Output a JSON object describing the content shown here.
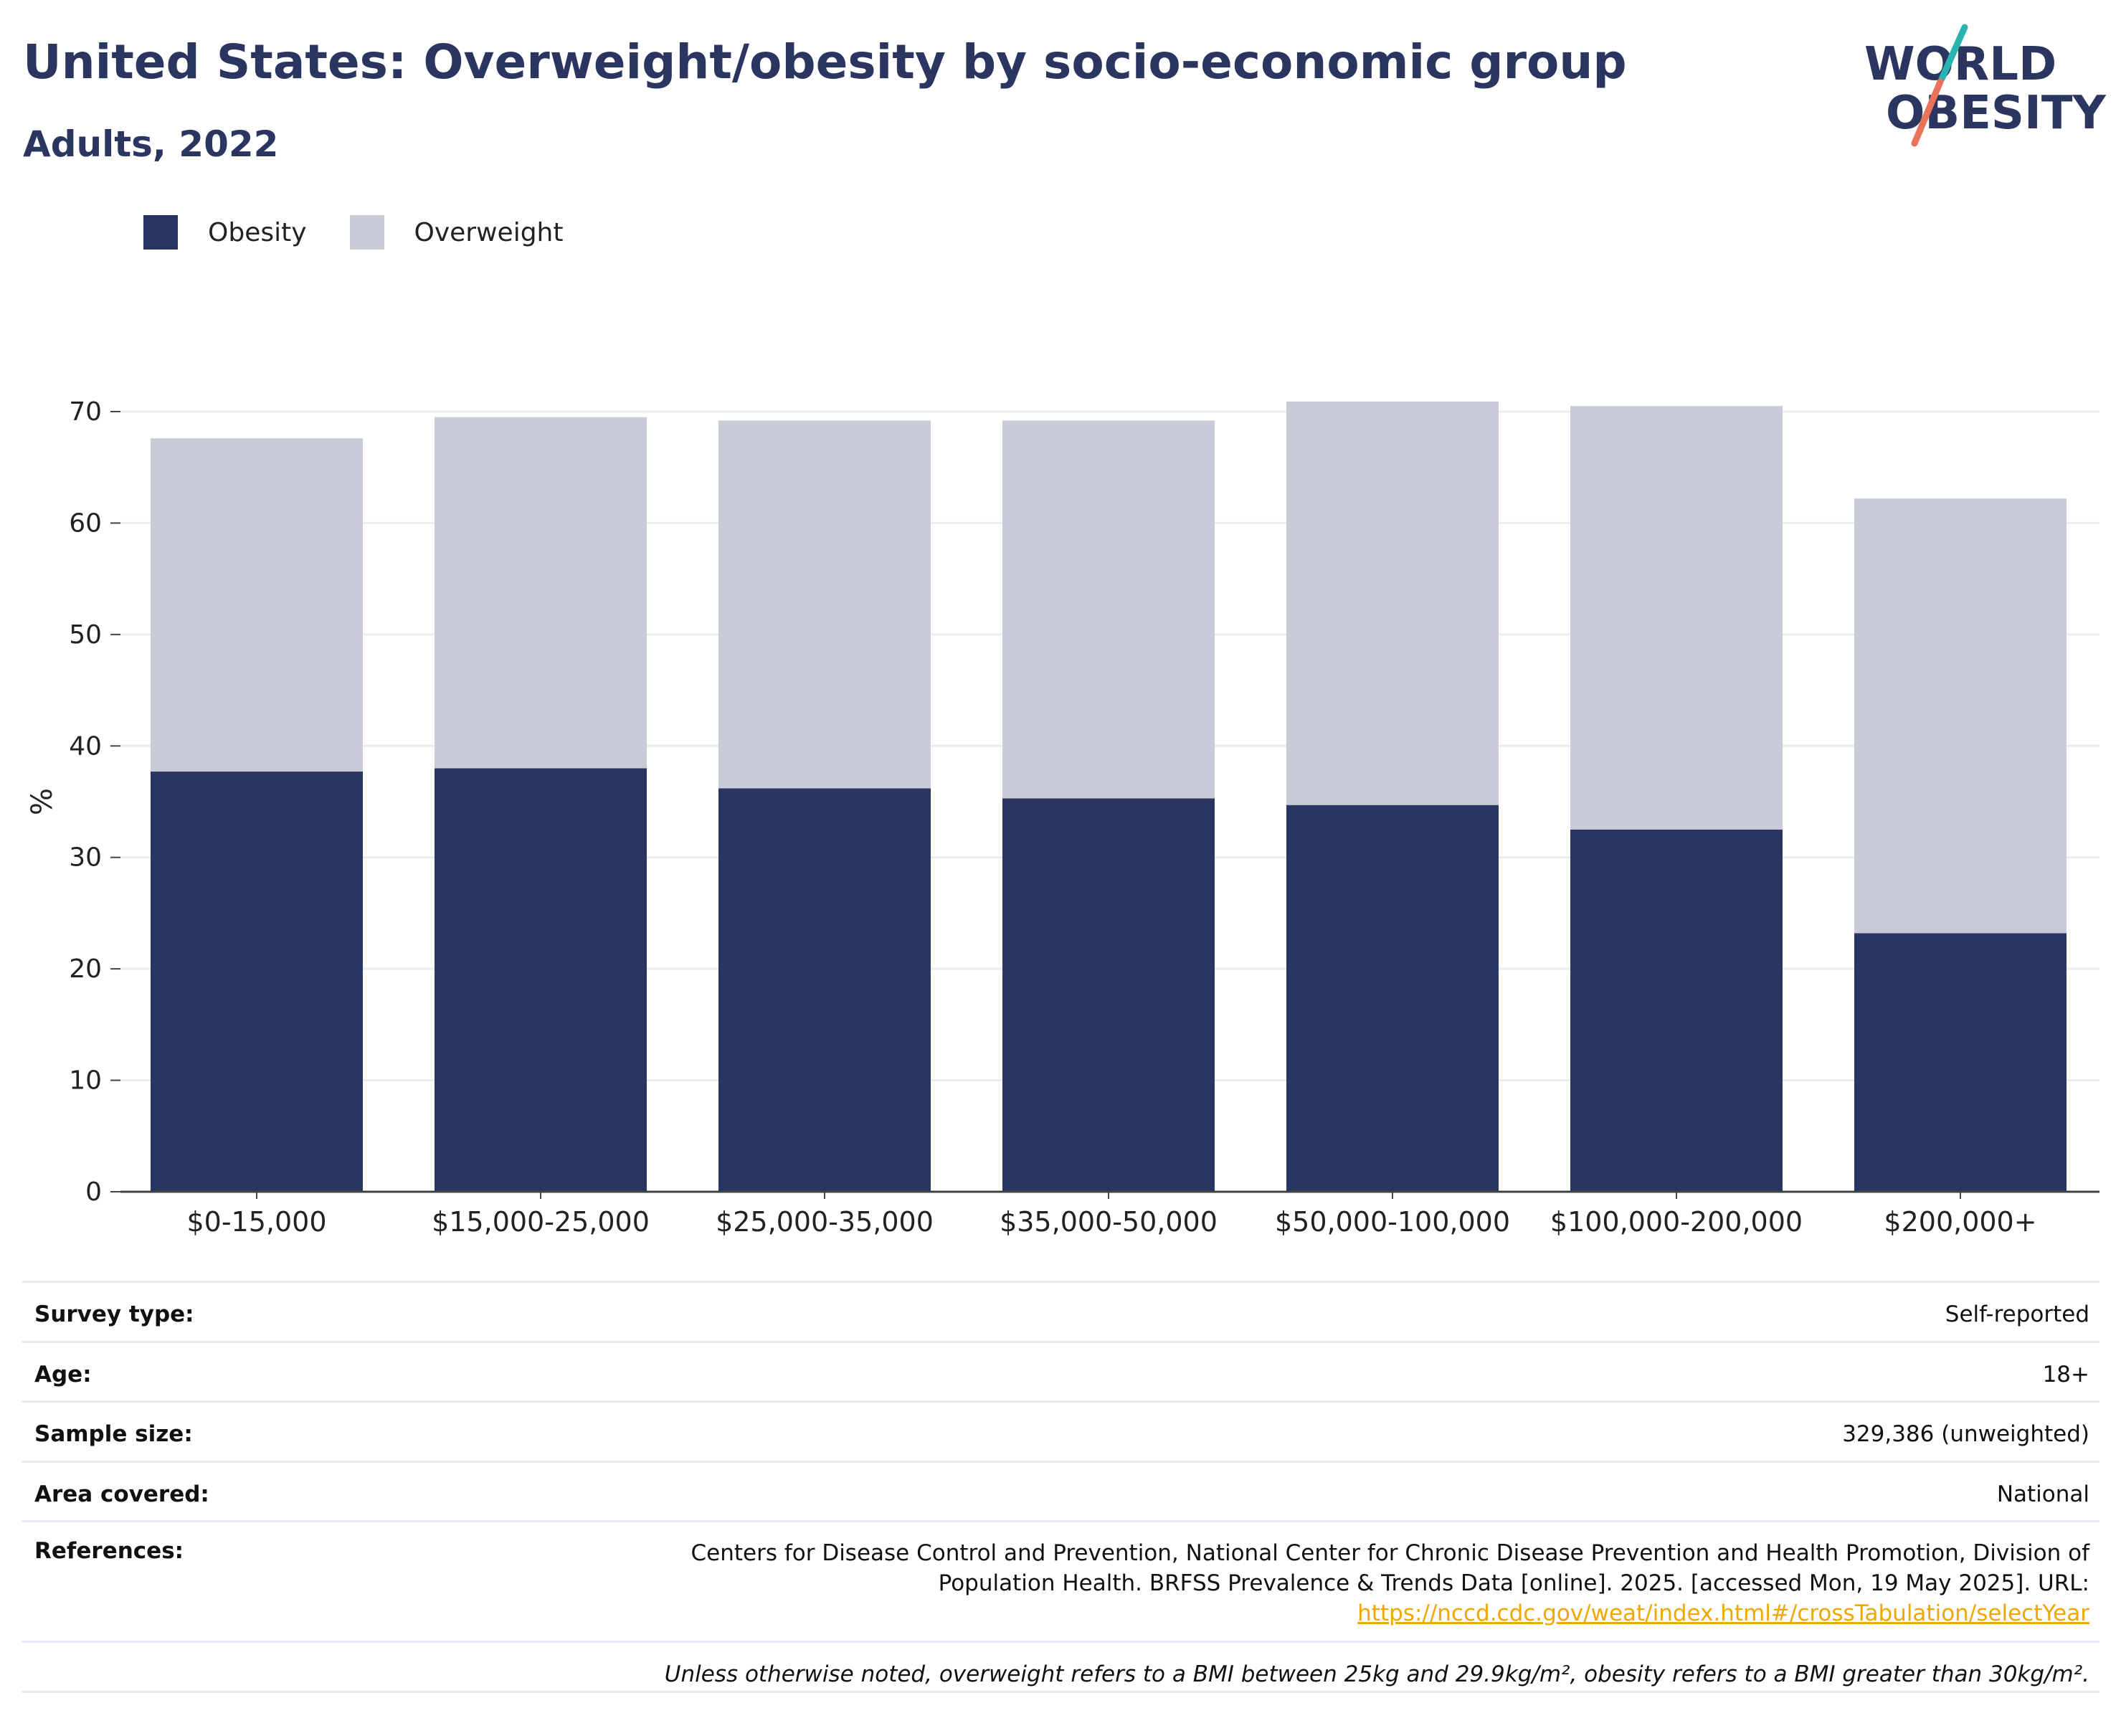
{
  "header": {
    "title": "United States: Overweight/obesity by socio-economic group",
    "subtitle": "Adults, 2022"
  },
  "logo": {
    "line1": "WORLD",
    "line2": "OBESITY",
    "colors": {
      "text": "#2a3560",
      "slash_teal": "#2ab4b0",
      "slash_coral": "#e8735a"
    }
  },
  "legend": {
    "items": [
      {
        "label": "Obesity",
        "color": "#2a3561"
      },
      {
        "label": "Overweight",
        "color": "#c9ccd8"
      }
    ]
  },
  "chart_data": {
    "type": "bar",
    "stacked": true,
    "categories": [
      "$0-15,000",
      "$15,000-25,000",
      "$25,000-35,000",
      "$35,000-50,000",
      "$50,000-100,000",
      "$100,000-200,000",
      "$200,000+"
    ],
    "series": [
      {
        "name": "Obesity",
        "color": "#2a3561",
        "values": [
          37.7,
          38.0,
          36.2,
          35.3,
          34.7,
          32.5,
          23.2
        ]
      },
      {
        "name": "Overweight",
        "color": "#c9ccd8",
        "values": [
          29.9,
          31.5,
          33.0,
          33.9,
          36.2,
          38.0,
          39.0
        ]
      }
    ],
    "ylabel": "%",
    "ylim": [
      0,
      70
    ],
    "yticks": [
      "0",
      "10",
      "20",
      "30",
      "40",
      "50",
      "60",
      "70"
    ],
    "grid": true,
    "legend_position": "top-left"
  },
  "meta": {
    "survey_type": {
      "key": "Survey type:",
      "value": "Self-reported"
    },
    "age": {
      "key": "Age:",
      "value": "18+"
    },
    "sample_size": {
      "key": "Sample size:",
      "value": "329,386 (unweighted)"
    },
    "area": {
      "key": "Area covered:",
      "value": "National"
    },
    "references": {
      "key": "References:",
      "line1": "Centers for Disease Control and Prevention, National Center for Chronic Disease Prevention and Health Promotion, Division of",
      "line2": "Population Health. BRFSS Prevalence & Trends Data [online]. 2025. [accessed Mon, 19 May 2025]. URL:",
      "url": "https://nccd.cdc.gov/weat/index.html#/crossTabulation/selectYear"
    },
    "note": "Unless otherwise noted, overweight refers to a BMI between 25kg and 29.9kg/m², obesity refers to a BMI greater than 30kg/m²."
  }
}
